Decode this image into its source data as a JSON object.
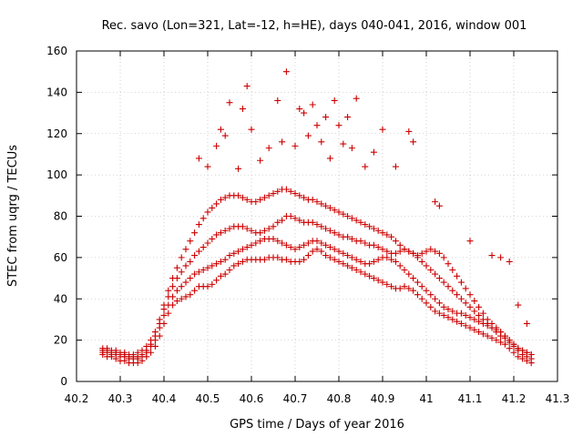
{
  "chart_data": {
    "type": "scatter",
    "title": "Rec. savo (Lon=321, Lat=-12, h=HE), days 040-041, 2016, window 001",
    "xlabel": "GPS time / Days of year 2016",
    "ylabel": "STEC from uqrg / TECUs",
    "xlim": [
      40.2,
      41.3
    ],
    "ylim": [
      0,
      160
    ],
    "x_ticks": [
      "40.2",
      "40.3",
      "40.4",
      "40.5",
      "40.6",
      "40.7",
      "40.8",
      "40.9",
      "41",
      "41.1",
      "41.2",
      "41.3"
    ],
    "x_tick_values": [
      40.2,
      40.3,
      40.4,
      40.5,
      40.6,
      40.7,
      40.8,
      40.9,
      41.0,
      41.1,
      41.2,
      41.3
    ],
    "y_ticks": [
      "0",
      "20",
      "40",
      "60",
      "80",
      "100",
      "120",
      "140",
      "160"
    ],
    "y_tick_values": [
      0,
      20,
      40,
      60,
      80,
      100,
      120,
      140,
      160
    ],
    "grid": true,
    "marker": "plus",
    "color": "#cc0000",
    "series": [
      {
        "x": [
          40.26,
          40.27,
          40.28,
          40.29,
          40.3,
          40.31,
          40.32,
          40.33,
          40.34,
          40.35,
          40.36,
          40.37,
          40.38,
          40.39,
          40.4,
          40.41,
          40.42,
          40.43,
          40.44,
          40.45,
          40.46,
          40.47,
          40.48,
          40.49,
          40.5,
          40.51,
          40.52,
          40.53,
          40.54,
          40.55,
          40.56,
          40.57,
          40.58,
          40.59,
          40.6,
          40.61,
          40.62,
          40.63,
          40.64,
          40.65,
          40.66,
          40.67,
          40.68,
          40.69,
          40.7,
          40.71,
          40.72,
          40.73,
          40.74,
          40.75,
          40.76,
          40.77,
          40.78,
          40.79,
          40.8,
          40.81,
          40.82,
          40.83,
          40.84,
          40.85,
          40.86,
          40.87,
          40.88,
          40.89,
          40.9,
          40.91,
          40.92,
          40.93,
          40.94,
          40.95,
          40.96,
          40.97,
          40.98,
          40.99,
          41.0,
          41.01,
          41.02,
          41.03,
          41.04,
          41.05,
          41.06,
          41.07,
          41.08,
          41.09,
          41.1,
          41.11,
          41.12,
          41.13,
          41.14,
          41.15,
          41.16,
          41.17,
          41.18,
          41.19,
          41.2,
          41.21,
          41.22,
          41.23,
          41.24
        ],
        "y": [
          13,
          12,
          12,
          11,
          10,
          10,
          9,
          9,
          9,
          10,
          12,
          14,
          17,
          22,
          28,
          33,
          37,
          39,
          40,
          41,
          42,
          44,
          46,
          46,
          46,
          47,
          49,
          51,
          52,
          54,
          56,
          57,
          58,
          59,
          59,
          59,
          59,
          59,
          60,
          60,
          60,
          59,
          59,
          58,
          58,
          58,
          59,
          61,
          63,
          64,
          63,
          61,
          60,
          59,
          58,
          57,
          56,
          55,
          54,
          53,
          52,
          51,
          50,
          49,
          48,
          47,
          46,
          45,
          45,
          46,
          45,
          44,
          42,
          40,
          38,
          36,
          34,
          33,
          32,
          31,
          30,
          29,
          28,
          27,
          26,
          25,
          24,
          23,
          22,
          21,
          20,
          19,
          18,
          16,
          14,
          12,
          11,
          10,
          9
        ]
      },
      {
        "x": [
          40.26,
          40.27,
          40.28,
          40.29,
          40.3,
          40.31,
          40.32,
          40.33,
          40.34,
          40.35,
          40.36,
          40.37,
          40.38,
          40.39,
          40.4,
          40.41,
          40.42,
          40.43,
          40.44,
          40.45,
          40.46,
          40.47,
          40.48,
          40.49,
          40.5,
          40.51,
          40.52,
          40.53,
          40.54,
          40.55,
          40.56,
          40.57,
          40.58,
          40.59,
          40.6,
          40.61,
          40.62,
          40.63,
          40.64,
          40.65,
          40.66,
          40.67,
          40.68,
          40.69,
          40.7,
          40.71,
          40.72,
          40.73,
          40.74,
          40.75,
          40.76,
          40.77,
          40.78,
          40.79,
          40.8,
          40.81,
          40.82,
          40.83,
          40.84,
          40.85,
          40.86,
          40.87,
          40.88,
          40.89,
          40.9,
          40.91,
          40.92,
          40.93,
          40.94,
          40.95,
          40.96,
          40.97,
          40.98,
          40.99,
          41.0,
          41.01,
          41.02,
          41.03,
          41.04,
          41.05,
          41.06,
          41.07,
          41.08,
          41.09,
          41.1,
          41.11,
          41.12,
          41.13,
          41.14,
          41.15,
          41.16,
          41.17,
          41.18,
          41.19,
          41.2,
          41.21,
          41.22,
          41.23,
          41.24
        ],
        "y": [
          14,
          14,
          13,
          13,
          12,
          12,
          11,
          11,
          11,
          12,
          14,
          17,
          20,
          26,
          32,
          37,
          41,
          44,
          46,
          48,
          50,
          52,
          53,
          54,
          55,
          56,
          57,
          58,
          59,
          61,
          62,
          63,
          64,
          65,
          66,
          67,
          68,
          69,
          69,
          69,
          68,
          67,
          66,
          65,
          64,
          65,
          66,
          67,
          68,
          68,
          67,
          66,
          65,
          64,
          63,
          62,
          61,
          60,
          59,
          58,
          57,
          57,
          58,
          59,
          60,
          60,
          59,
          58,
          56,
          54,
          52,
          50,
          48,
          46,
          44,
          42,
          40,
          38,
          36,
          35,
          34,
          33,
          33,
          32,
          31,
          30,
          29,
          28,
          27,
          26,
          25,
          24,
          22,
          20,
          18,
          16,
          15,
          14,
          13
        ]
      },
      {
        "x": [
          40.26,
          40.27,
          40.28,
          40.29,
          40.3,
          40.31,
          40.32,
          40.33,
          40.34,
          40.35,
          40.36,
          40.37,
          40.38,
          40.39,
          40.4,
          40.41,
          40.42,
          40.43,
          40.44,
          40.45,
          40.46,
          40.47,
          40.48,
          40.49,
          40.5,
          40.51,
          40.52,
          40.53,
          40.54,
          40.55,
          40.56,
          40.57,
          40.58,
          40.59,
          40.6,
          40.61,
          40.62,
          40.63,
          40.64,
          40.65,
          40.66,
          40.67,
          40.68,
          40.69,
          40.7,
          40.71,
          40.72,
          40.73,
          40.74,
          40.75,
          40.76,
          40.77,
          40.78,
          40.79,
          40.8,
          40.81,
          40.82,
          40.83,
          40.84,
          40.85,
          40.86,
          40.87,
          40.88,
          40.89,
          40.9,
          40.91,
          40.92,
          40.93,
          40.94,
          40.95,
          40.96,
          40.97,
          40.98,
          40.99,
          41.0,
          41.01,
          41.02,
          41.03,
          41.04,
          41.05,
          41.06,
          41.07,
          41.08,
          41.09,
          41.1,
          41.11,
          41.12,
          41.13,
          41.14,
          41.15,
          41.16,
          41.17,
          41.18,
          41.19,
          41.2,
          41.21,
          41.22,
          41.23,
          41.24
        ],
        "y": [
          15,
          15,
          14,
          14,
          13,
          13,
          12,
          12,
          12,
          13,
          15,
          18,
          22,
          28,
          35,
          41,
          46,
          50,
          53,
          56,
          58,
          61,
          63,
          65,
          67,
          69,
          71,
          72,
          73,
          74,
          75,
          75,
          75,
          74,
          73,
          72,
          72,
          73,
          74,
          75,
          77,
          78,
          80,
          80,
          79,
          78,
          77,
          77,
          77,
          76,
          75,
          74,
          73,
          72,
          71,
          70,
          70,
          69,
          68,
          68,
          67,
          66,
          66,
          65,
          64,
          63,
          62,
          62,
          63,
          64,
          63,
          62,
          60,
          58,
          56,
          54,
          52,
          50,
          48,
          46,
          44,
          42,
          40,
          38,
          36,
          34,
          32,
          30,
          28,
          26,
          24,
          22,
          21,
          19,
          17,
          15,
          13,
          12,
          11
        ]
      },
      {
        "x": [
          40.26,
          40.27,
          40.28,
          40.29,
          40.3,
          40.31,
          40.32,
          40.33,
          40.34,
          40.35,
          40.36,
          40.37,
          40.38,
          40.39,
          40.4,
          40.41,
          40.42,
          40.43,
          40.44,
          40.45,
          40.46,
          40.47,
          40.48,
          40.49,
          40.5,
          40.51,
          40.52,
          40.53,
          40.54,
          40.55,
          40.56,
          40.57,
          40.58,
          40.59,
          40.6,
          40.61,
          40.62,
          40.63,
          40.64,
          40.65,
          40.66,
          40.67,
          40.68,
          40.69,
          40.7,
          40.71,
          40.72,
          40.73,
          40.74,
          40.75,
          40.76,
          40.77,
          40.78,
          40.79,
          40.8,
          40.81,
          40.82,
          40.83,
          40.84,
          40.85,
          40.86,
          40.87,
          40.88,
          40.89,
          40.9,
          40.91,
          40.92,
          40.93,
          40.94,
          40.95,
          40.96,
          40.97,
          40.98,
          40.99,
          41.0,
          41.01,
          41.02,
          41.03,
          41.04,
          41.05,
          41.06,
          41.07,
          41.08,
          41.09,
          41.1,
          41.11,
          41.12,
          41.13,
          41.14,
          41.15,
          41.16,
          41.17,
          41.18,
          41.19,
          41.2,
          41.21,
          41.22,
          41.23,
          41.24
        ],
        "y": [
          16,
          16,
          15,
          15,
          14,
          14,
          13,
          13,
          14,
          15,
          17,
          20,
          24,
          30,
          37,
          44,
          50,
          55,
          60,
          64,
          68,
          72,
          76,
          79,
          82,
          84,
          86,
          88,
          89,
          90,
          90,
          90,
          89,
          88,
          87,
          87,
          88,
          89,
          90,
          91,
          92,
          93,
          93,
          92,
          91,
          90,
          89,
          88,
          88,
          87,
          86,
          85,
          84,
          83,
          82,
          81,
          80,
          79,
          78,
          77,
          76,
          75,
          74,
          73,
          72,
          71,
          70,
          68,
          66,
          64,
          63,
          62,
          61,
          62,
          63,
          64,
          63,
          62,
          60,
          57,
          54,
          51,
          48,
          45,
          42,
          39,
          36,
          33,
          30,
          28,
          26,
          24,
          22,
          20,
          18,
          16,
          15,
          14,
          13
        ]
      },
      {
        "x": [
          40.48,
          40.5,
          40.52,
          40.53,
          40.54,
          40.55,
          40.57,
          40.58,
          40.59,
          40.6,
          40.62,
          40.64,
          40.66,
          40.67,
          40.68,
          40.7,
          40.71,
          40.72,
          40.73,
          40.74,
          40.75,
          40.76,
          40.77,
          40.78,
          40.79,
          40.8,
          40.81,
          40.82,
          40.83,
          40.84,
          40.86,
          40.88,
          40.9,
          40.93,
          40.96,
          40.97,
          41.02,
          41.03,
          41.1,
          41.15,
          41.17,
          41.19,
          41.21,
          41.23
        ],
        "y": [
          108,
          104,
          114,
          122,
          119,
          135,
          103,
          132,
          143,
          122,
          107,
          113,
          136,
          116,
          150,
          114,
          132,
          130,
          119,
          134,
          124,
          116,
          128,
          108,
          136,
          124,
          115,
          128,
          113,
          137,
          104,
          111,
          122,
          104,
          121,
          116,
          87,
          85,
          68,
          61,
          60,
          58,
          37,
          28
        ]
      }
    ]
  }
}
